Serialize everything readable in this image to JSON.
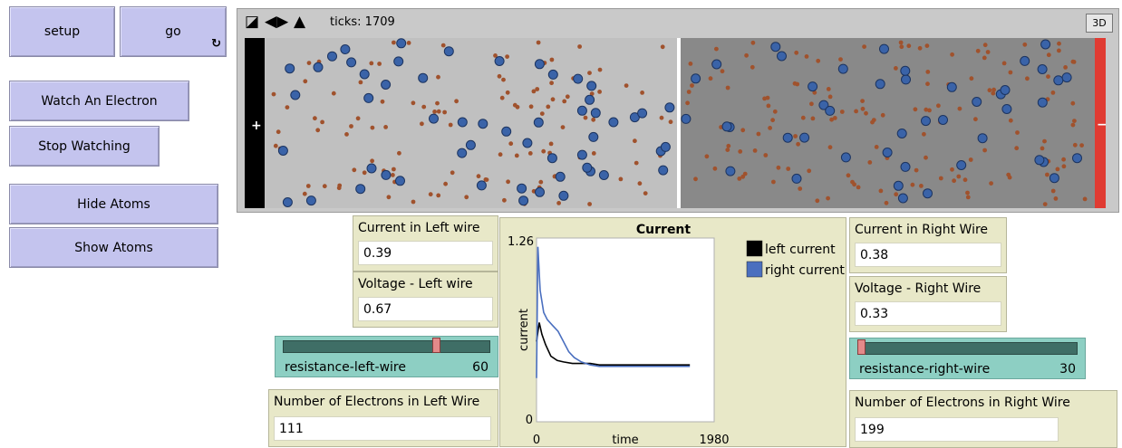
{
  "buttons": {
    "setup": "setup",
    "go": "go",
    "go_forever_glyph": "↻",
    "watch": "Watch An Electron",
    "stop_watching": "Stop Watching",
    "hide_atoms": "Hide Atoms",
    "show_atoms": "Show Atoms"
  },
  "world": {
    "ticks_label": "ticks: 1709",
    "btn_3d": "3D",
    "plus_label": "+",
    "minus_label": "−",
    "left_wire_color": "#c0c0c0",
    "right_wire_color": "#898989",
    "left_terminal_color": "#000000",
    "right_terminal_color": "#e03b32",
    "electron_color": "#3a63a8",
    "atom_color": "#a0522d"
  },
  "monitors": {
    "current_left": {
      "label": "Current in Left wire",
      "value": "0.39"
    },
    "voltage_left": {
      "label": "Voltage - Left wire",
      "value": "0.67"
    },
    "electrons_left": {
      "label": "Number of Electrons in Left Wire",
      "value": "111"
    },
    "current_right": {
      "label": "Current in Right Wire",
      "value": "0.38"
    },
    "voltage_right": {
      "label": "Voltage - Right Wire",
      "value": "0.33"
    },
    "electrons_right": {
      "label": "Number of Electrons in Right Wire",
      "value": "199"
    }
  },
  "sliders": {
    "left": {
      "label": "resistance-left-wire",
      "value": "60",
      "min": 0,
      "max": 80
    },
    "right": {
      "label": "resistance-right-wire",
      "value": "30",
      "min": 30,
      "max": 100
    }
  },
  "chart_data": {
    "type": "line",
    "title": "Current",
    "xlabel": "time",
    "ylabel": "current",
    "x_tick_min": "0",
    "x_tick_max": "1980",
    "y_tick_min": "0",
    "y_tick_max": "1.26",
    "xlim": [
      0,
      1980
    ],
    "ylim": [
      0,
      1.26
    ],
    "series": [
      {
        "name": "left current",
        "color": "#000000",
        "x": [
          0,
          30,
          60,
          100,
          160,
          230,
          300,
          400,
          500,
          600,
          700,
          800,
          900,
          1000,
          1100,
          1200,
          1300,
          1400,
          1500,
          1600,
          1709
        ],
        "y": [
          0.55,
          0.68,
          0.6,
          0.53,
          0.45,
          0.42,
          0.41,
          0.4,
          0.4,
          0.4,
          0.39,
          0.39,
          0.39,
          0.39,
          0.39,
          0.39,
          0.39,
          0.39,
          0.39,
          0.39,
          0.39
        ]
      },
      {
        "name": "right current",
        "color": "#4a6fbf",
        "x": [
          0,
          15,
          40,
          80,
          120,
          180,
          240,
          300,
          360,
          420,
          500,
          600,
          700,
          800,
          900,
          1000,
          1100,
          1200,
          1300,
          1400,
          1500,
          1600,
          1709
        ],
        "y": [
          0.3,
          1.2,
          0.9,
          0.75,
          0.7,
          0.66,
          0.62,
          0.55,
          0.48,
          0.44,
          0.41,
          0.39,
          0.38,
          0.38,
          0.38,
          0.38,
          0.38,
          0.38,
          0.38,
          0.38,
          0.38,
          0.38,
          0.38
        ]
      }
    ]
  }
}
